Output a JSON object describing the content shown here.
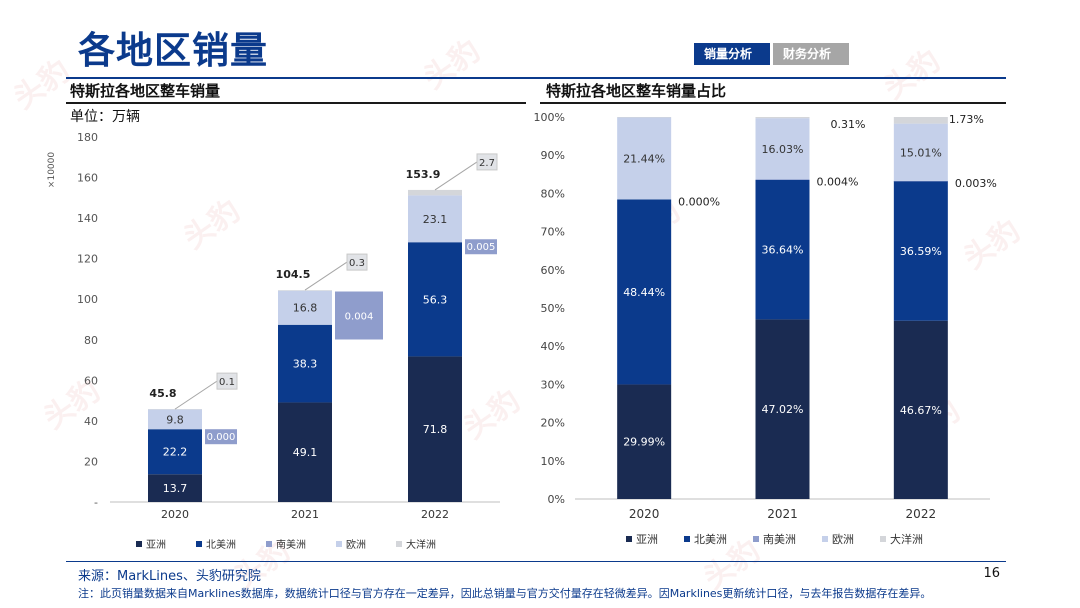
{
  "header": {
    "title": "各地区销量",
    "tabs": [
      {
        "label": "销量分析",
        "active": true
      },
      {
        "label": "财务分析",
        "active": false
      }
    ]
  },
  "watermark": "头豹",
  "left_panel": {
    "title": "特斯拉各地区整车销量",
    "unit": "单位：万辆",
    "scale_label": "×10000"
  },
  "right_panel": {
    "title": "特斯拉各地区整车销量占比"
  },
  "colors": {
    "asia": "#1a2b52",
    "north_america": "#0b3a8c",
    "south_america": "#8f9dcc",
    "europe": "#c5d0ea",
    "oceania": "#d4d6da",
    "accent": "#0b3a8c"
  },
  "chart_data": [
    {
      "type": "bar",
      "stacked": true,
      "categories": [
        "2020",
        "2021",
        "2022"
      ],
      "series": [
        {
          "name": "亚洲",
          "values": [
            13.7,
            49.1,
            71.8
          ]
        },
        {
          "name": "北美洲",
          "values": [
            22.2,
            38.3,
            56.3
          ]
        },
        {
          "name": "南美洲",
          "values": [
            0.0,
            0.0,
            0.0
          ]
        },
        {
          "name": "欧洲",
          "values": [
            9.8,
            16.8,
            23.1
          ]
        },
        {
          "name": "大洋洲",
          "values": [
            0.1,
            0.3,
            2.7
          ]
        }
      ],
      "value_labels": {
        "亚洲": [
          "13.7",
          "49.1",
          "71.8"
        ],
        "北美洲": [
          "22.2",
          "38.3",
          "56.3"
        ],
        "南美洲": [
          "0.000",
          "0.004",
          "0.005"
        ],
        "欧洲": [
          "9.8",
          "16.8",
          "23.1"
        ],
        "大洋洲": [
          "0.1",
          "0.3",
          "2.7"
        ]
      },
      "totals": [
        "45.8",
        "104.5",
        "153.9"
      ],
      "ylim": [
        0,
        180
      ],
      "yticks": [
        0,
        20,
        40,
        60,
        80,
        100,
        120,
        140,
        160,
        180
      ],
      "ytick_labels": [
        "-",
        "20",
        "40",
        "60",
        "80",
        "100",
        "120",
        "140",
        "160",
        "180"
      ],
      "legend_position": "bottom"
    },
    {
      "type": "bar",
      "stacked": true,
      "percent": true,
      "categories": [
        "2020",
        "2021",
        "2022"
      ],
      "series": [
        {
          "name": "亚洲",
          "values": [
            29.99,
            47.02,
            46.67
          ]
        },
        {
          "name": "北美洲",
          "values": [
            48.44,
            36.64,
            36.59
          ]
        },
        {
          "name": "南美洲",
          "values": [
            0.0,
            0.004,
            0.003
          ]
        },
        {
          "name": "欧洲",
          "values": [
            21.44,
            16.03,
            15.01
          ]
        },
        {
          "name": "大洋洲",
          "values": [
            0.13,
            0.31,
            1.73
          ]
        }
      ],
      "value_labels": {
        "亚洲": [
          "29.99%",
          "47.02%",
          "46.67%"
        ],
        "北美洲": [
          "48.44%",
          "36.64%",
          "36.59%"
        ],
        "南美洲": [
          "0.000%",
          "0.004%",
          "0.003%"
        ],
        "欧洲": [
          "21.44%",
          "16.03%",
          "15.01%"
        ],
        "大洋洲": [
          "",
          "0.31%",
          "1.73%"
        ]
      },
      "ylim": [
        0,
        100
      ],
      "yticks": [
        0,
        10,
        20,
        30,
        40,
        50,
        60,
        70,
        80,
        90,
        100
      ],
      "ytick_labels": [
        "0%",
        "10%",
        "20%",
        "30%",
        "40%",
        "50%",
        "60%",
        "70%",
        "80%",
        "90%",
        "100%"
      ],
      "legend_position": "bottom"
    }
  ],
  "footer": {
    "source": "来源：MarkLines、头豹研究院",
    "note": "注：此页销量数据来自Marklines数据库，数据统计口径与官方存在一定差异，因此总销量与官方交付量存在轻微差异。因Marklines更新统计口径，与去年报告数据存在差异。",
    "page_number": "16"
  }
}
